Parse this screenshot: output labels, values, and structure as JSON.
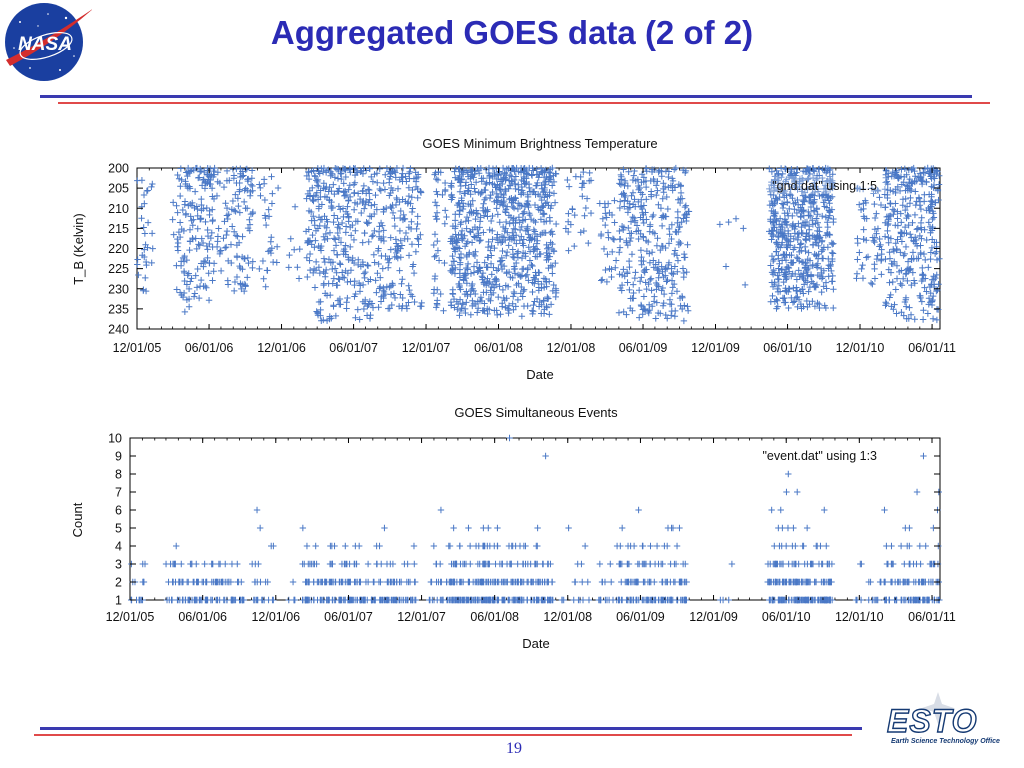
{
  "slide": {
    "title": "Aggregated GOES data (2 of 2)",
    "page_number": "19",
    "logo_left": "NASA",
    "logo_right": "ESTO",
    "logo_right_subtitle": "Earth Science Technology Office"
  },
  "colors": {
    "title": "#2b2bb5",
    "rule_blue": "#3a3ab0",
    "rule_red": "#e04a4a",
    "marker": "#4a78c6",
    "nasa_blue": "#1a3fa0",
    "nasa_red": "#d32d2d"
  },
  "chart_data": [
    {
      "type": "scatter",
      "marker": "+",
      "title": "GOES Minimum Brightness Temperature",
      "xlabel": "Date",
      "ylabel": "T_B (Kelvin)",
      "x_range": [
        "2005-12-01",
        "2011-06-21"
      ],
      "xticks": [
        "12/01/05",
        "06/01/06",
        "12/01/06",
        "06/01/07",
        "12/01/07",
        "06/01/08",
        "12/01/08",
        "06/01/09",
        "12/01/09",
        "06/01/10",
        "12/01/10",
        "06/01/11"
      ],
      "yticks": [
        "200",
        "205",
        "210",
        "215",
        "220",
        "225",
        "230",
        "235",
        "240"
      ],
      "ylim": [
        240,
        200
      ],
      "y_inverted": true,
      "legend": "\"gnd.dat\" using 1:5",
      "legend_position": "top-right",
      "series": [
        {
          "name": "\"gnd.dat\" using 1:5",
          "clusters": [
            {
              "start": "2005-12-01",
              "end": "2006-01-10",
              "ymin": 203,
              "ymax": 232,
              "n": 30
            },
            {
              "start": "2006-03-01",
              "end": "2006-06-15",
              "ymin": 200,
              "ymax": 236,
              "n": 170
            },
            {
              "start": "2006-06-20",
              "end": "2006-09-20",
              "ymin": 200,
              "ymax": 231,
              "n": 110
            },
            {
              "start": "2006-10-01",
              "end": "2006-11-25",
              "ymin": 202,
              "ymax": 230,
              "n": 30
            },
            {
              "start": "2006-12-15",
              "end": "2007-01-20",
              "ymin": 208,
              "ymax": 232,
              "n": 8
            },
            {
              "start": "2007-02-01",
              "end": "2007-07-15",
              "ymin": 200,
              "ymax": 238,
              "n": 330
            },
            {
              "start": "2007-07-15",
              "end": "2007-11-20",
              "ymin": 200,
              "ymax": 235,
              "n": 200
            },
            {
              "start": "2007-12-20",
              "end": "2008-01-25",
              "ymin": 201,
              "ymax": 236,
              "n": 40
            },
            {
              "start": "2008-02-01",
              "end": "2008-10-25",
              "ymin": 200,
              "ymax": 237,
              "n": 780
            },
            {
              "start": "2008-11-15",
              "end": "2009-01-25",
              "ymin": 201,
              "ymax": 223,
              "n": 30
            },
            {
              "start": "2009-02-10",
              "end": "2009-03-25",
              "ymin": 208,
              "ymax": 230,
              "n": 30
            },
            {
              "start": "2009-04-01",
              "end": "2009-09-25",
              "ymin": 200,
              "ymax": 238,
              "n": 330
            },
            {
              "start": "2009-12-10",
              "end": "2010-02-20",
              "ymin": 212,
              "ymax": 231,
              "n": 6
            },
            {
              "start": "2010-04-15",
              "end": "2010-09-25",
              "ymin": 200,
              "ymax": 235,
              "n": 560
            },
            {
              "start": "2010-11-20",
              "end": "2011-01-25",
              "ymin": 205,
              "ymax": 230,
              "n": 60
            },
            {
              "start": "2011-02-01",
              "end": "2011-06-20",
              "ymin": 200,
              "ymax": 238,
              "n": 330
            }
          ]
        }
      ]
    },
    {
      "type": "scatter",
      "marker": "+",
      "title": "GOES Simultaneous Events",
      "xlabel": "Date",
      "ylabel": "Count",
      "x_range": [
        "2005-12-01",
        "2011-06-21"
      ],
      "xticks": [
        "12/01/05",
        "06/01/06",
        "12/01/06",
        "06/01/07",
        "12/01/07",
        "06/01/08",
        "12/01/08",
        "06/01/09",
        "12/01/09",
        "06/01/10",
        "12/01/10",
        "06/01/11"
      ],
      "yticks": [
        "1",
        "2",
        "3",
        "4",
        "5",
        "6",
        "7",
        "8",
        "9",
        "10"
      ],
      "ylim": [
        1,
        10
      ],
      "legend": "\"event.dat\" using 1:3",
      "legend_position": "top-right",
      "series": [
        {
          "name": "\"event.dat\" using 1:3",
          "clusters": [
            {
              "start": "2005-12-01",
              "end": "2006-01-10",
              "levels": {
                "1": 8,
                "2": 5,
                "3": 3
              }
            },
            {
              "start": "2006-03-01",
              "end": "2006-06-15",
              "levels": {
                "1": 40,
                "2": 25,
                "3": 12,
                "4": 1
              }
            },
            {
              "start": "2006-06-20",
              "end": "2006-09-20",
              "levels": {
                "1": 30,
                "2": 20,
                "3": 8
              }
            },
            {
              "start": "2006-10-01",
              "end": "2006-11-25",
              "levels": {
                "1": 12,
                "2": 6,
                "3": 3,
                "4": 2,
                "5": 1,
                "6": 1
              }
            },
            {
              "start": "2006-12-15",
              "end": "2007-01-20",
              "levels": {
                "1": 4,
                "2": 1
              }
            },
            {
              "start": "2007-02-01",
              "end": "2007-07-15",
              "levels": {
                "1": 70,
                "2": 45,
                "3": 22,
                "4": 8,
                "5": 1
              }
            },
            {
              "start": "2007-07-15",
              "end": "2007-11-20",
              "levels": {
                "1": 45,
                "2": 25,
                "3": 10,
                "4": 3,
                "5": 1
              }
            },
            {
              "start": "2007-12-20",
              "end": "2008-01-25",
              "levels": {
                "1": 10,
                "2": 6,
                "3": 3,
                "4": 1,
                "6": 1
              }
            },
            {
              "start": "2008-02-01",
              "end": "2008-10-25",
              "levels": {
                "1": 140,
                "2": 90,
                "3": 50,
                "4": 25,
                "5": 6,
                "9": 1,
                "10": 1
              }
            },
            {
              "start": "2008-11-15",
              "end": "2009-01-25",
              "levels": {
                "1": 8,
                "2": 4,
                "3": 2,
                "4": 1,
                "5": 1
              }
            },
            {
              "start": "2009-02-10",
              "end": "2009-03-25",
              "levels": {
                "1": 8,
                "2": 4,
                "3": 2
              }
            },
            {
              "start": "2009-04-01",
              "end": "2009-09-25",
              "levels": {
                "1": 70,
                "2": 45,
                "3": 25,
                "4": 12,
                "5": 5,
                "6": 1
              }
            },
            {
              "start": "2009-12-10",
              "end": "2010-02-20",
              "levels": {
                "1": 3,
                "3": 1
              }
            },
            {
              "start": "2010-04-15",
              "end": "2010-09-25",
              "levels": {
                "1": 110,
                "2": 70,
                "3": 35,
                "4": 12,
                "5": 5,
                "6": 3,
                "7": 2,
                "8": 1
              }
            },
            {
              "start": "2010-11-20",
              "end": "2011-01-25",
              "levels": {
                "1": 10,
                "2": 5,
                "3": 2
              }
            },
            {
              "start": "2011-02-01",
              "end": "2011-06-20",
              "levels": {
                "1": 60,
                "2": 40,
                "3": 20,
                "4": 8,
                "5": 3,
                "6": 2,
                "7": 2,
                "9": 1
              }
            }
          ]
        }
      ]
    }
  ]
}
